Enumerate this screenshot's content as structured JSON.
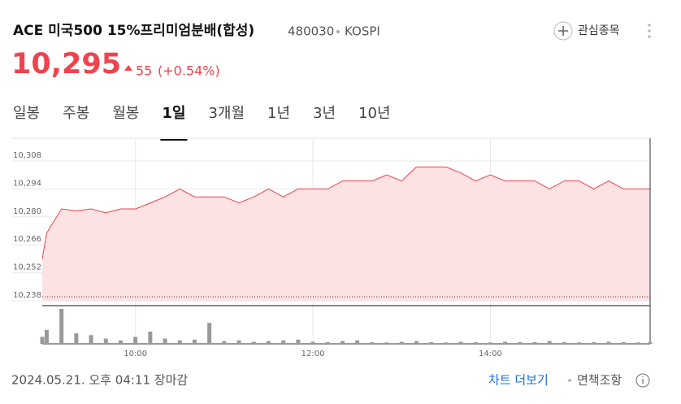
{
  "header": {
    "title": "ACE 미국500 15%프리미엄분배(합성)",
    "code": "480030",
    "market": "KOSPI",
    "watch_button": "관심종목"
  },
  "price": {
    "current": "10,295",
    "change": "55",
    "change_pct": "(+0.54%)"
  },
  "tabs": [
    "일봉",
    "주봉",
    "월봉",
    "1일",
    "3개월",
    "1년",
    "3년",
    "10년"
  ],
  "selected_tab": 3,
  "chart_data": {
    "type": "line",
    "color": "#e8434c",
    "fill": "#fde2e3",
    "x": [
      537,
      540,
      550,
      560,
      570,
      580,
      590,
      600,
      610,
      620,
      630,
      640,
      650,
      660,
      670,
      680,
      690,
      700,
      710,
      720,
      730,
      740,
      750,
      760,
      770,
      780,
      790,
      800,
      810,
      820,
      830,
      840,
      850,
      860,
      870,
      880,
      890,
      900,
      910,
      920,
      930,
      940,
      948
    ],
    "values": [
      10259,
      10272,
      10284,
      10283,
      10284,
      10282,
      10284,
      10284,
      10287,
      10290,
      10294,
      10290,
      10290,
      10290,
      10287,
      10290,
      10294,
      10290,
      10294,
      10294,
      10294,
      10298,
      10298,
      10298,
      10301,
      10298,
      10305,
      10305,
      10305,
      10302,
      10298,
      10301,
      10298,
      10298,
      10298,
      10294,
      10298,
      10298,
      10294,
      10298,
      10294,
      10294,
      10294
    ],
    "volume": [
      20,
      40,
      100,
      30,
      25,
      15,
      10,
      20,
      35,
      15,
      10,
      12,
      60,
      8,
      10,
      6,
      8,
      10,
      12,
      6,
      5,
      8,
      10,
      5,
      4,
      6,
      8,
      5,
      4,
      6,
      5,
      4,
      6,
      5,
      5,
      8,
      5,
      4,
      5,
      6,
      5,
      4,
      5
    ],
    "volume_lim": [
      0,
      100
    ],
    "reference_line": 10240,
    "xlim": [
      537,
      948
    ],
    "xticks": [
      {
        "value": 600,
        "label": "10:00"
      },
      {
        "value": 720,
        "label": "12:00"
      },
      {
        "value": 840,
        "label": "14:00"
      }
    ],
    "ylim": [
      10238,
      10308
    ],
    "yticks": [
      {
        "value": 10238,
        "label": "10,238"
      },
      {
        "value": 10252,
        "label": "10,252"
      },
      {
        "value": 10266,
        "label": "10,266"
      },
      {
        "value": 10280,
        "label": "10,280"
      },
      {
        "value": 10294,
        "label": "10,294"
      },
      {
        "value": 10308,
        "label": "10,308"
      }
    ],
    "grid": true
  },
  "footer": {
    "timestamp": "2024.05.21. 오후 04:11 장마감",
    "more_chart": "차트 더보기",
    "disclaimer": "면책조항"
  }
}
